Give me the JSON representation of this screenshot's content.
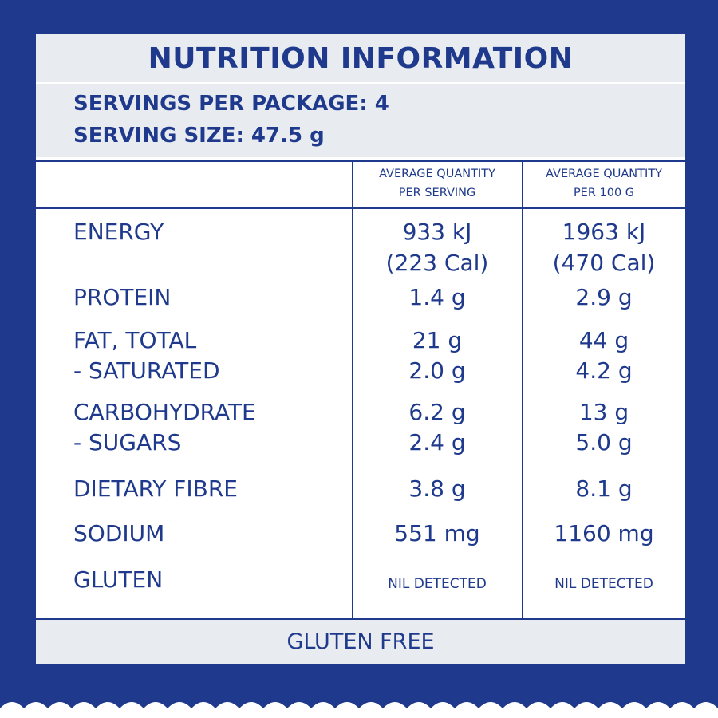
{
  "title": "NUTRITION INFORMATION",
  "servings_per_package": "SERVINGS PER PACKAGE: 4",
  "serving_size": "SERVING SIZE: 47.5 g",
  "columns": {
    "per_serving_line1": "AVERAGE QUANTITY",
    "per_serving_line2": "PER SERVING",
    "per_100g_line1": "AVERAGE QUANTITY",
    "per_100g_line2": "PER 100 G"
  },
  "rows": {
    "energy": {
      "label": "ENERGY",
      "serving": "933 kJ",
      "serving_cal": "(223 Cal)",
      "per100": "1963 kJ",
      "per100_cal": "(470 Cal)"
    },
    "protein": {
      "label": "PROTEIN",
      "serving": "1.4 g",
      "per100": "2.9 g"
    },
    "fat_total": {
      "label": "FAT, TOTAL",
      "serving": "21 g",
      "per100": "44 g"
    },
    "saturated": {
      "label": "- SATURATED",
      "serving": "2.0 g",
      "per100": "4.2 g"
    },
    "carbohydrate": {
      "label": "CARBOHYDRATE",
      "serving": "6.2 g",
      "per100": "13 g"
    },
    "sugars": {
      "label": "- SUGARS",
      "serving": "2.4 g",
      "per100": "5.0 g"
    },
    "dietary_fibre": {
      "label": "DIETARY FIBRE",
      "serving": "3.8 g",
      "per100": "8.1 g"
    },
    "sodium": {
      "label": "SODIUM",
      "serving": "551 mg",
      "per100": "1160 mg"
    },
    "gluten": {
      "label": "GLUTEN",
      "serving": "NIL DETECTED",
      "per100": "NIL DETECTED"
    }
  },
  "footer": "GLUTEN FREE",
  "colors": {
    "primary": "#1f3a8c",
    "band": "#e8ebf0",
    "background": "#ffffff"
  }
}
